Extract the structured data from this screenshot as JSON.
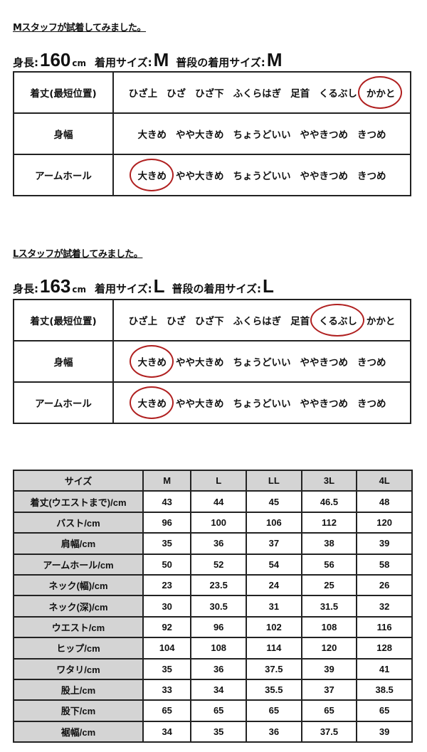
{
  "staff": [
    {
      "title": "Mスタッフが試着してみました。",
      "height_label": "身長:",
      "height": "160",
      "height_unit": "cm",
      "worn_label": "着用サイズ:",
      "worn_size": "M",
      "usual_label": "普段の着用サイズ:",
      "usual_size": "M",
      "rows": [
        {
          "label": "着丈(最短位置)",
          "options": [
            "ひざ上",
            "ひざ",
            "ひざ下",
            "ふくらはぎ",
            "足首",
            "くるぶし",
            "かかと"
          ],
          "selected": 6
        },
        {
          "label": "身幅",
          "options": [
            "大きめ",
            "やや大きめ",
            "ちょうどいい",
            "ややきつめ",
            "きつめ"
          ],
          "selected": null
        },
        {
          "label": "アームホール",
          "options": [
            "大きめ",
            "やや大きめ",
            "ちょうどいい",
            "ややきつめ",
            "きつめ"
          ],
          "selected": 0
        }
      ]
    },
    {
      "title": "Lスタッフが試着してみました。",
      "height_label": "身長:",
      "height": "163",
      "height_unit": "cm",
      "worn_label": "着用サイズ:",
      "worn_size": "L",
      "usual_label": "普段の着用サイズ:",
      "usual_size": "L",
      "rows": [
        {
          "label": "着丈(最短位置)",
          "options": [
            "ひざ上",
            "ひざ",
            "ひざ下",
            "ふくらはぎ",
            "足首",
            "くるぶし",
            "かかと"
          ],
          "selected": 5
        },
        {
          "label": "身幅",
          "options": [
            "大きめ",
            "やや大きめ",
            "ちょうどいい",
            "ややきつめ",
            "きつめ"
          ],
          "selected": 0
        },
        {
          "label": "アームホール",
          "options": [
            "大きめ",
            "やや大きめ",
            "ちょうどいい",
            "ややきつめ",
            "きつめ"
          ],
          "selected": 0
        }
      ]
    }
  ],
  "circle_color": "#b02020",
  "size_table": {
    "headers": [
      "サイズ",
      "M",
      "L",
      "LL",
      "3L",
      "4L"
    ],
    "rows": [
      [
        "着丈(ウエストまで)/cm",
        "43",
        "44",
        "45",
        "46.5",
        "48"
      ],
      [
        "バスト/cm",
        "96",
        "100",
        "106",
        "112",
        "120"
      ],
      [
        "肩幅/cm",
        "35",
        "36",
        "37",
        "38",
        "39"
      ],
      [
        "アームホール/cm",
        "50",
        "52",
        "54",
        "56",
        "58"
      ],
      [
        "ネック(幅)/cm",
        "23",
        "23.5",
        "24",
        "25",
        "26"
      ],
      [
        "ネック(深)/cm",
        "30",
        "30.5",
        "31",
        "31.5",
        "32"
      ],
      [
        "ウエスト/cm",
        "92",
        "96",
        "102",
        "108",
        "116"
      ],
      [
        "ヒップ/cm",
        "104",
        "108",
        "114",
        "120",
        "128"
      ],
      [
        "ワタリ/cm",
        "35",
        "36",
        "37.5",
        "39",
        "41"
      ],
      [
        "股上/cm",
        "33",
        "34",
        "35.5",
        "37",
        "38.5"
      ],
      [
        "股下/cm",
        "65",
        "65",
        "65",
        "65",
        "65"
      ],
      [
        "裾幅/cm",
        "34",
        "35",
        "36",
        "37.5",
        "39"
      ]
    ]
  }
}
